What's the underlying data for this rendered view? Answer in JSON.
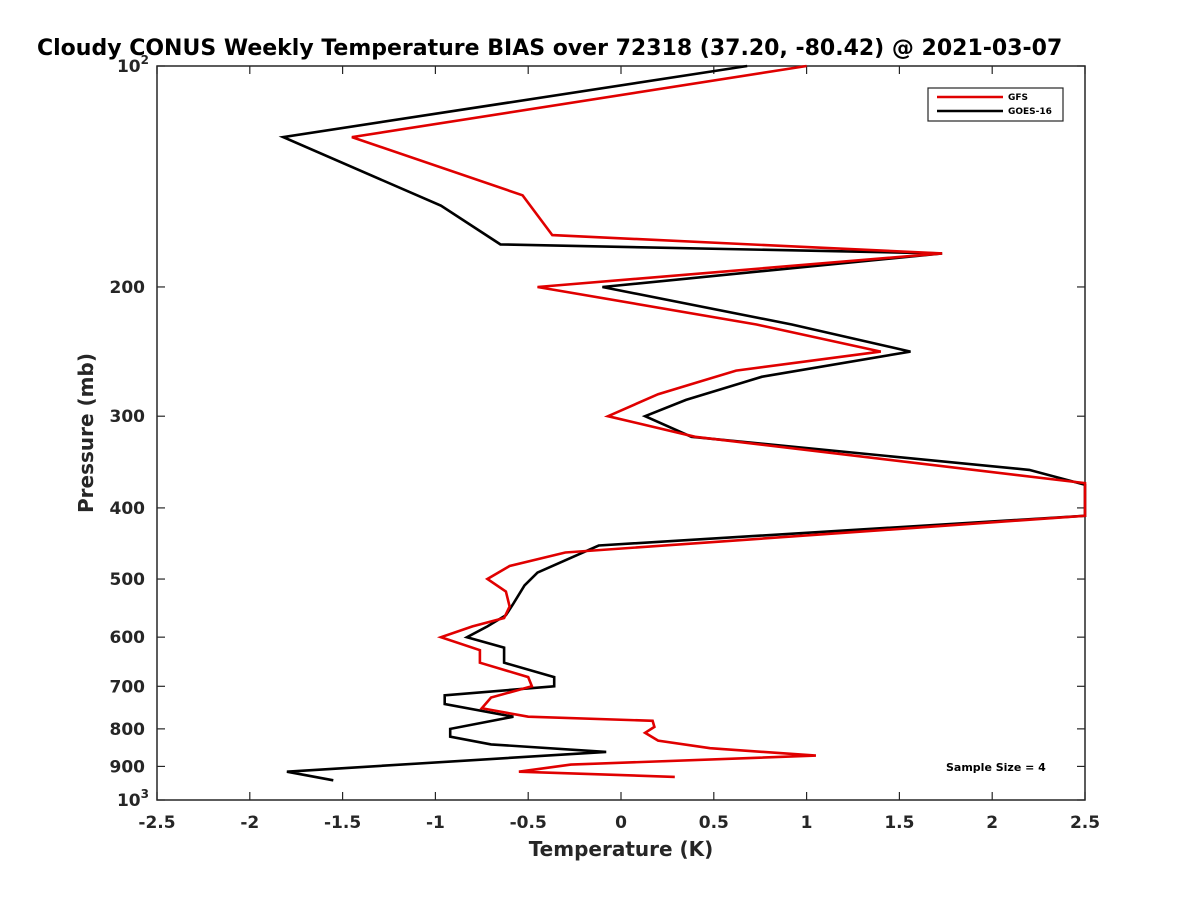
{
  "chart_data": {
    "type": "line",
    "title": "Cloudy CONUS Weekly Temperature BIAS over 72318 (37.20, -80.42) @ 2021-03-07",
    "xlabel": "Temperature (K)",
    "ylabel": "Pressure (mb)",
    "xlim": [
      -2.5,
      2.5
    ],
    "ylim": [
      100,
      1000
    ],
    "yscale": "log",
    "y_reversed": true,
    "grid": false,
    "legend_position": "top-right",
    "x_ticks": [
      -2.5,
      -2,
      -1.5,
      -1,
      -0.5,
      0,
      0.5,
      1,
      1.5,
      2,
      2.5
    ],
    "x_tick_labels": [
      "-2.5",
      "-2",
      "-1.5",
      "-1",
      "-0.5",
      "0",
      "0.5",
      "1",
      "1.5",
      "2",
      "2.5"
    ],
    "y_ticks": [
      100,
      200,
      300,
      400,
      500,
      600,
      700,
      800,
      900,
      1000
    ],
    "y_tick_labels": [
      {
        "base": "10",
        "exp": "2"
      },
      {
        "base": "200",
        "exp": ""
      },
      {
        "base": "300",
        "exp": ""
      },
      {
        "base": "400",
        "exp": ""
      },
      {
        "base": "500",
        "exp": ""
      },
      {
        "base": "600",
        "exp": ""
      },
      {
        "base": "700",
        "exp": ""
      },
      {
        "base": "800",
        "exp": ""
      },
      {
        "base": "900",
        "exp": ""
      },
      {
        "base": "10",
        "exp": "3"
      }
    ],
    "annotation": "Sample Size = 4",
    "series": [
      {
        "name": "GFS",
        "color": "#e00000",
        "points": [
          [
            1.0,
            100
          ],
          [
            -1.45,
            125
          ],
          [
            -0.53,
            150
          ],
          [
            -0.37,
            170
          ],
          [
            1.73,
            180
          ],
          [
            -0.45,
            200
          ],
          [
            0.73,
            225
          ],
          [
            1.4,
            245
          ],
          [
            0.62,
            260
          ],
          [
            0.2,
            280
          ],
          [
            -0.07,
            300
          ],
          [
            0.4,
            320
          ],
          [
            2.5,
            370
          ],
          [
            2.5,
            410
          ],
          [
            -0.3,
            460
          ],
          [
            -0.6,
            480
          ],
          [
            -0.72,
            500
          ],
          [
            -0.62,
            520
          ],
          [
            -0.6,
            545
          ],
          [
            -0.63,
            565
          ],
          [
            -0.8,
            580
          ],
          [
            -0.97,
            600
          ],
          [
            -0.76,
            625
          ],
          [
            -0.76,
            650
          ],
          [
            -0.5,
            680
          ],
          [
            -0.48,
            700
          ],
          [
            -0.7,
            725
          ],
          [
            -0.75,
            750
          ],
          [
            -0.5,
            770
          ],
          [
            0.17,
            780
          ],
          [
            0.18,
            795
          ],
          [
            0.13,
            810
          ],
          [
            0.2,
            830
          ],
          [
            0.48,
            850
          ],
          [
            1.05,
            870
          ],
          [
            -0.27,
            895
          ],
          [
            -0.55,
            915
          ],
          [
            0.29,
            930
          ]
        ]
      },
      {
        "name": "GOES-16",
        "color": "#000000",
        "points": [
          [
            0.68,
            100
          ],
          [
            -1.82,
            125
          ],
          [
            -0.97,
            155
          ],
          [
            -0.65,
            175
          ],
          [
            1.73,
            180
          ],
          [
            -0.1,
            200
          ],
          [
            0.92,
            225
          ],
          [
            1.56,
            245
          ],
          [
            0.76,
            265
          ],
          [
            0.35,
            285
          ],
          [
            0.13,
            300
          ],
          [
            0.38,
            320
          ],
          [
            2.2,
            355
          ],
          [
            2.5,
            372
          ],
          [
            2.5,
            410
          ],
          [
            -0.12,
            450
          ],
          [
            -0.45,
            490
          ],
          [
            -0.52,
            510
          ],
          [
            -0.58,
            540
          ],
          [
            -0.62,
            560
          ],
          [
            -0.72,
            580
          ],
          [
            -0.83,
            600
          ],
          [
            -0.63,
            620
          ],
          [
            -0.63,
            650
          ],
          [
            -0.36,
            680
          ],
          [
            -0.36,
            700
          ],
          [
            -0.95,
            720
          ],
          [
            -0.95,
            740
          ],
          [
            -0.58,
            770
          ],
          [
            -0.92,
            800
          ],
          [
            -0.92,
            820
          ],
          [
            -0.7,
            840
          ],
          [
            -0.08,
            860
          ],
          [
            -1.8,
            915
          ],
          [
            -1.55,
            940
          ]
        ]
      }
    ]
  }
}
